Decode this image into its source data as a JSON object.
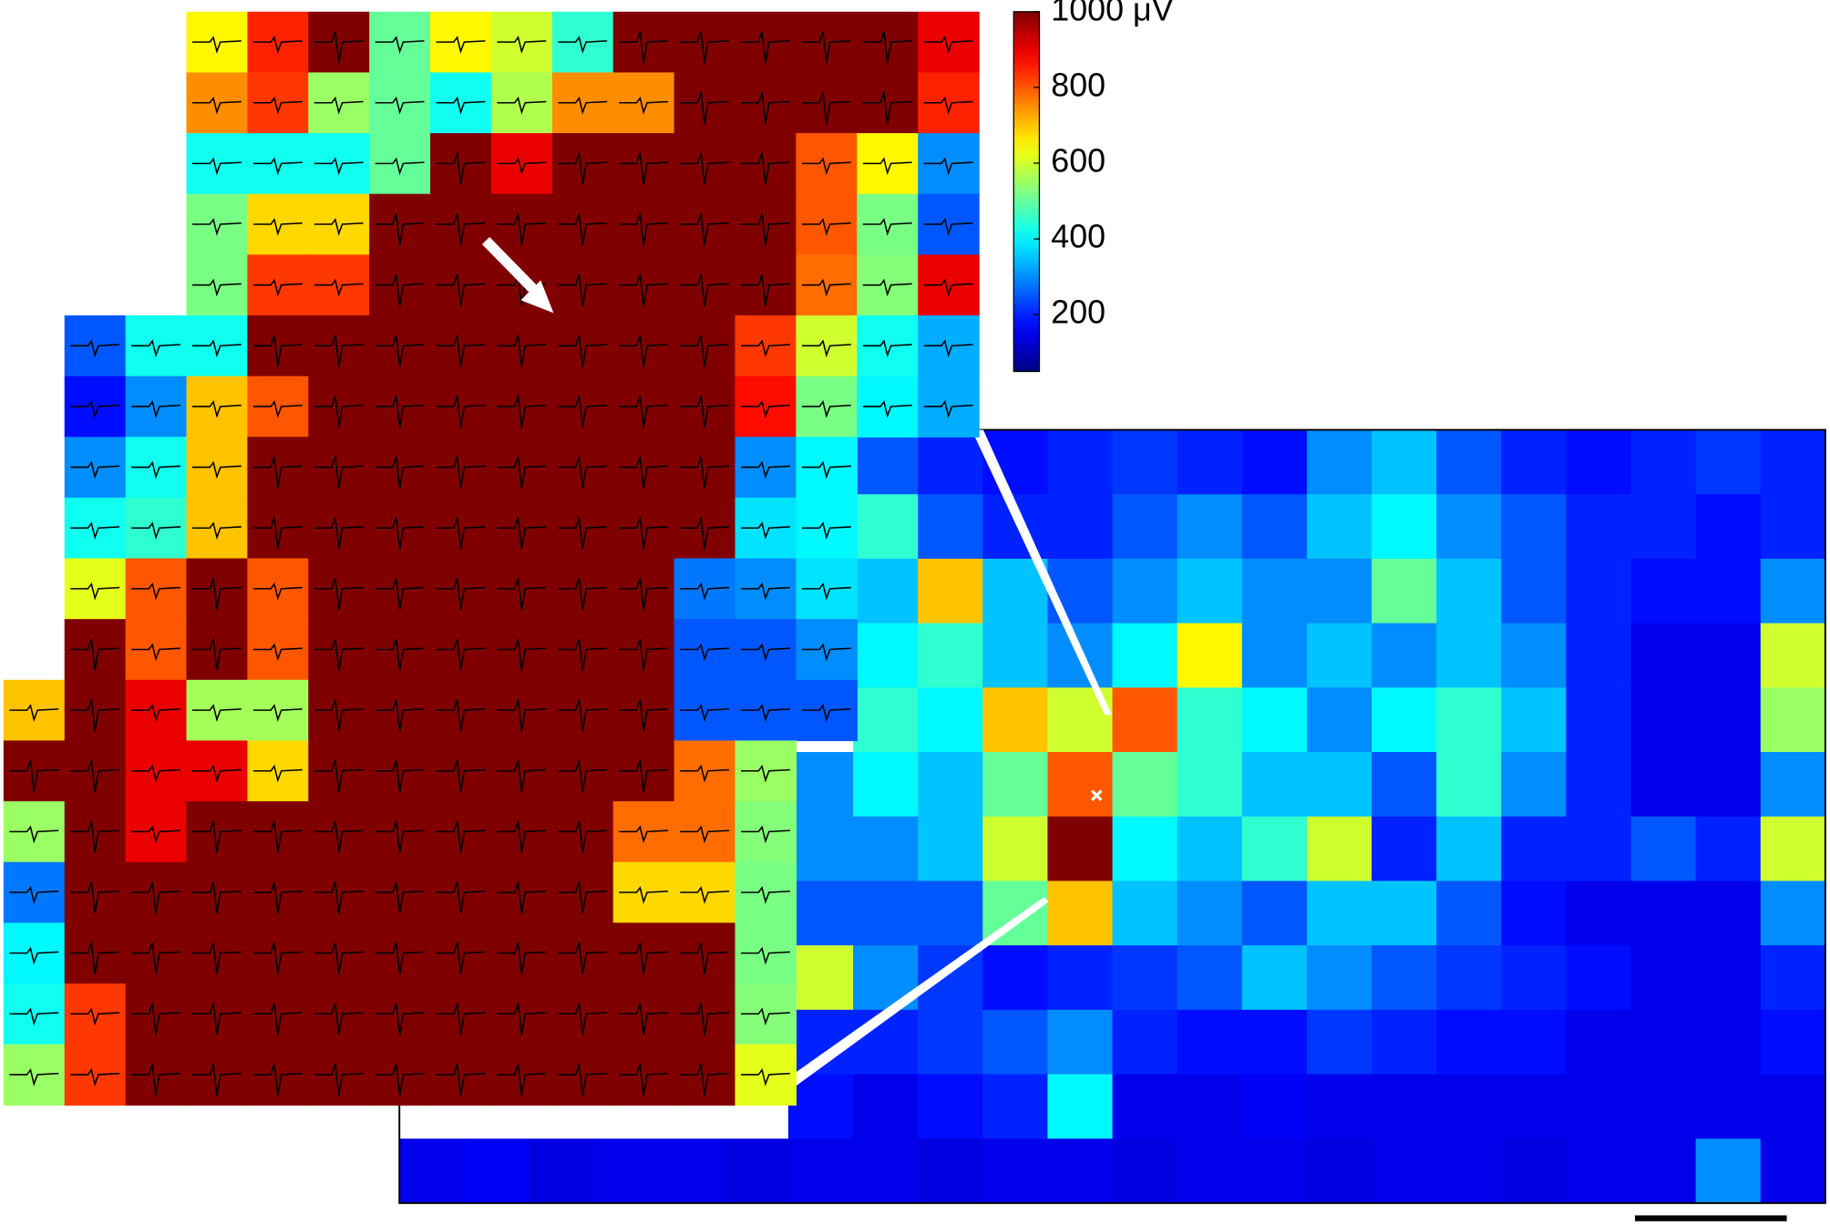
{
  "chart_data": {
    "type": "heatmap",
    "zlim": [
      50,
      1000
    ],
    "zticks": [
      200,
      400,
      600,
      800,
      {
        "value": 1000,
        "label": "1000 μV"
      }
    ],
    "inset": {
      "values": [
        [
          null,
          null,
          null,
          650,
          850,
          1000,
          500,
          650,
          600,
          450,
          1000,
          1000,
          1000,
          1000,
          1000,
          900
        ],
        [
          null,
          null,
          null,
          750,
          830,
          550,
          500,
          420,
          570,
          750,
          750,
          1000,
          1000,
          1000,
          1000,
          850
        ],
        [
          null,
          null,
          null,
          420,
          420,
          420,
          500,
          1000,
          900,
          1000,
          1000,
          1000,
          1000,
          800,
          650,
          300
        ],
        [
          null,
          null,
          null,
          520,
          680,
          680,
          1000,
          1000,
          1000,
          1000,
          1000,
          1000,
          1000,
          800,
          520,
          250
        ],
        [
          null,
          null,
          null,
          520,
          830,
          830,
          1000,
          1000,
          1000,
          1000,
          1000,
          1000,
          1000,
          780,
          530,
          900
        ],
        [
          null,
          250,
          420,
          420,
          1000,
          1000,
          1000,
          1000,
          1000,
          1000,
          1000,
          1000,
          830,
          600,
          420,
          330
        ],
        [
          null,
          180,
          300,
          700,
          800,
          1000,
          1000,
          1000,
          1000,
          1000,
          1000,
          1000,
          870,
          520,
          400,
          330
        ],
        [
          null,
          300,
          420,
          700,
          1000,
          1000,
          1000,
          1000,
          1000,
          1000,
          1000,
          1000,
          300,
          400,
          null,
          null
        ],
        [
          null,
          420,
          450,
          700,
          1000,
          1000,
          1000,
          1000,
          1000,
          1000,
          1000,
          1000,
          380,
          400,
          null,
          null
        ],
        [
          null,
          620,
          800,
          1000,
          800,
          1000,
          1000,
          1000,
          1000,
          1000,
          1000,
          280,
          300,
          380,
          null,
          null
        ],
        [
          null,
          1000,
          800,
          1000,
          800,
          1000,
          1000,
          1000,
          1000,
          1000,
          1000,
          250,
          250,
          300,
          null,
          null
        ],
        [
          700,
          1000,
          900,
          560,
          560,
          1000,
          1000,
          1000,
          1000,
          1000,
          1000,
          250,
          250,
          250,
          null,
          null
        ],
        [
          1000,
          1000,
          900,
          900,
          680,
          1000,
          1000,
          1000,
          1000,
          1000,
          1000,
          780,
          550,
          null,
          null,
          null
        ],
        [
          550,
          1000,
          900,
          1000,
          1000,
          1000,
          1000,
          1000,
          1000,
          1000,
          780,
          780,
          530,
          null,
          null,
          null
        ],
        [
          280,
          1000,
          1000,
          1000,
          1000,
          1000,
          1000,
          1000,
          1000,
          1000,
          680,
          680,
          520,
          null,
          null,
          null
        ],
        [
          400,
          1000,
          1000,
          1000,
          1000,
          1000,
          1000,
          1000,
          1000,
          1000,
          1000,
          1000,
          520,
          null,
          null,
          null
        ],
        [
          420,
          830,
          1000,
          1000,
          1000,
          1000,
          1000,
          1000,
          1000,
          1000,
          1000,
          1000,
          530,
          null,
          null,
          null
        ],
        [
          550,
          830,
          1000,
          1000,
          1000,
          1000,
          1000,
          1000,
          1000,
          1000,
          1000,
          1000,
          620,
          null,
          null,
          null
        ]
      ]
    },
    "map": {
      "values": [
        [
          null,
          null,
          null,
          null,
          null,
          null,
          null,
          250,
          200,
          180,
          200,
          220,
          200,
          180,
          300,
          350,
          250,
          200,
          180,
          200,
          220,
          200
        ],
        [
          null,
          null,
          null,
          null,
          null,
          null,
          null,
          450,
          250,
          200,
          200,
          250,
          300,
          250,
          350,
          400,
          300,
          250,
          200,
          200,
          180,
          200
        ],
        [
          null,
          null,
          null,
          null,
          null,
          null,
          null,
          350,
          700,
          350,
          250,
          300,
          350,
          300,
          300,
          500,
          350,
          250,
          200,
          180,
          180,
          300
        ],
        [
          null,
          null,
          null,
          null,
          null,
          null,
          null,
          400,
          450,
          350,
          300,
          400,
          650,
          300,
          350,
          300,
          350,
          300,
          200,
          150,
          150,
          600
        ],
        [
          null,
          null,
          null,
          null,
          null,
          null,
          null,
          450,
          400,
          700,
          600,
          800,
          450,
          400,
          300,
          400,
          450,
          350,
          200,
          150,
          150,
          550
        ],
        [
          null,
          null,
          null,
          null,
          null,
          null,
          300,
          400,
          350,
          500,
          800,
          500,
          450,
          350,
          350,
          250,
          450,
          300,
          200,
          150,
          150,
          300
        ],
        [
          null,
          null,
          null,
          null,
          null,
          null,
          300,
          300,
          350,
          600,
          1000,
          400,
          350,
          450,
          600,
          200,
          350,
          200,
          200,
          250,
          200,
          600
        ],
        [
          null,
          null,
          null,
          null,
          null,
          null,
          250,
          250,
          250,
          500,
          700,
          350,
          300,
          250,
          350,
          350,
          250,
          180,
          150,
          150,
          150,
          300
        ],
        [
          null,
          null,
          null,
          null,
          null,
          null,
          600,
          300,
          220,
          180,
          200,
          220,
          250,
          350,
          300,
          250,
          220,
          200,
          180,
          150,
          150,
          200
        ],
        [
          null,
          null,
          null,
          null,
          null,
          null,
          200,
          200,
          220,
          250,
          300,
          200,
          180,
          180,
          220,
          200,
          180,
          180,
          150,
          150,
          150,
          180
        ],
        [
          null,
          null,
          null,
          null,
          null,
          null,
          180,
          150,
          180,
          200,
          400,
          150,
          150,
          160,
          150,
          150,
          150,
          150,
          150,
          150,
          150,
          150
        ],
        [
          150,
          160,
          140,
          150,
          150,
          140,
          150,
          150,
          140,
          150,
          150,
          140,
          150,
          150,
          140,
          150,
          150,
          140,
          150,
          150,
          300,
          150
        ]
      ]
    }
  }
}
